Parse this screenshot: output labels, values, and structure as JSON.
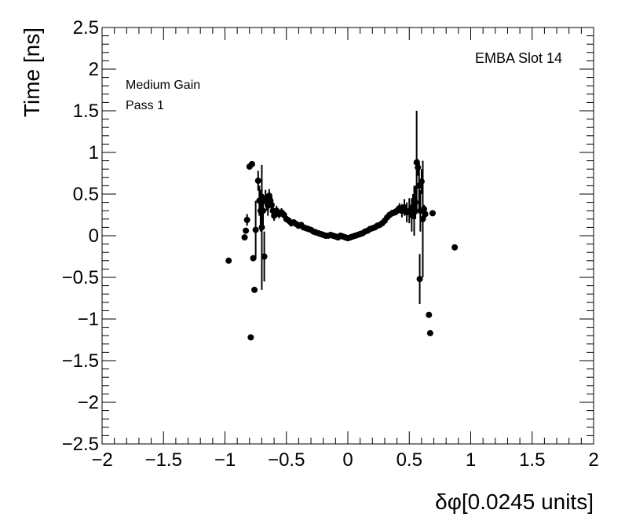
{
  "chart_data": {
    "type": "scatter",
    "xlabel": "δφ[0.0245 units]",
    "ylabel": "Time [ns]",
    "xlim": [
      -2,
      2
    ],
    "ylim": [
      -2.5,
      2.5
    ],
    "x_ticks": [
      "−2",
      "−1.5",
      "−1",
      "−0.5",
      "0",
      "0.5",
      "1",
      "1.5",
      "2"
    ],
    "y_ticks": [
      "−2.5",
      "−2",
      "−1.5",
      "−1",
      "−0.5",
      "0",
      "0.5",
      "1",
      "1.5",
      "2",
      "2.5"
    ],
    "annotations": {
      "top_right": "EMBA Slot 14",
      "line1": "Medium Gain",
      "line2": "Pass 1"
    },
    "grid": false,
    "marker_color": "#000000",
    "points": [
      {
        "x": -0.97,
        "y": -0.3,
        "err": 0
      },
      {
        "x": -0.84,
        "y": -0.02,
        "err": 0
      },
      {
        "x": -0.83,
        "y": 0.06,
        "err": 0
      },
      {
        "x": -0.82,
        "y": 0.19,
        "err": 0.07
      },
      {
        "x": -0.8,
        "y": 0.83,
        "err": 0
      },
      {
        "x": -0.79,
        "y": -1.22,
        "err": 0
      },
      {
        "x": -0.78,
        "y": 0.86,
        "err": 0
      },
      {
        "x": -0.77,
        "y": -0.27,
        "err": 0
      },
      {
        "x": -0.76,
        "y": -0.65,
        "err": 0
      },
      {
        "x": -0.75,
        "y": 0.07,
        "err": 0.35
      },
      {
        "x": -0.73,
        "y": 0.66,
        "err": 0.12
      },
      {
        "x": -0.72,
        "y": 0.42,
        "err": 0.18
      },
      {
        "x": -0.71,
        "y": 0.3,
        "err": 0.25
      },
      {
        "x": -0.7,
        "y": 0.1,
        "err": 0.75
      },
      {
        "x": -0.69,
        "y": 0.3,
        "err": 0.2
      },
      {
        "x": -0.68,
        "y": -0.25,
        "err": 0.3
      },
      {
        "x": -0.67,
        "y": 0.45,
        "err": 0.1
      },
      {
        "x": -0.66,
        "y": 0.4,
        "err": 0.1
      },
      {
        "x": -0.65,
        "y": 0.36,
        "err": 0.12
      },
      {
        "x": -0.64,
        "y": 0.48,
        "err": 0.08
      },
      {
        "x": -0.63,
        "y": 0.42,
        "err": 0.08
      },
      {
        "x": -0.62,
        "y": 0.37,
        "err": 0.1
      },
      {
        "x": -0.61,
        "y": 0.3,
        "err": 0.08
      },
      {
        "x": -0.6,
        "y": 0.24,
        "err": 0.06
      },
      {
        "x": -0.58,
        "y": 0.3,
        "err": 0.06
      },
      {
        "x": -0.56,
        "y": 0.26,
        "err": 0.05
      },
      {
        "x": -0.54,
        "y": 0.28,
        "err": 0.05
      },
      {
        "x": -0.52,
        "y": 0.25,
        "err": 0.05
      },
      {
        "x": -0.5,
        "y": 0.2,
        "err": 0.04
      },
      {
        "x": -0.48,
        "y": 0.18,
        "err": 0.04
      },
      {
        "x": -0.46,
        "y": 0.15,
        "err": 0.04
      },
      {
        "x": -0.44,
        "y": 0.16,
        "err": 0.03
      },
      {
        "x": -0.42,
        "y": 0.14,
        "err": 0.03
      },
      {
        "x": -0.4,
        "y": 0.12,
        "err": 0.03
      },
      {
        "x": -0.38,
        "y": 0.13,
        "err": 0.03
      },
      {
        "x": -0.36,
        "y": 0.1,
        "err": 0.03
      },
      {
        "x": -0.34,
        "y": 0.09,
        "err": 0.02
      },
      {
        "x": -0.32,
        "y": 0.08,
        "err": 0.02
      },
      {
        "x": -0.3,
        "y": 0.07,
        "err": 0.02
      },
      {
        "x": -0.28,
        "y": 0.05,
        "err": 0.02
      },
      {
        "x": -0.26,
        "y": 0.04,
        "err": 0.02
      },
      {
        "x": -0.24,
        "y": 0.03,
        "err": 0.02
      },
      {
        "x": -0.22,
        "y": 0.02,
        "err": 0.02
      },
      {
        "x": -0.2,
        "y": 0.01,
        "err": 0.02
      },
      {
        "x": -0.18,
        "y": 0.0,
        "err": 0.02
      },
      {
        "x": -0.16,
        "y": 0.0,
        "err": 0.02
      },
      {
        "x": -0.14,
        "y": 0.01,
        "err": 0.02
      },
      {
        "x": -0.12,
        "y": 0.0,
        "err": 0.02
      },
      {
        "x": -0.1,
        "y": -0.01,
        "err": 0.02
      },
      {
        "x": -0.08,
        "y": -0.02,
        "err": 0.02
      },
      {
        "x": -0.06,
        "y": 0.0,
        "err": 0.02
      },
      {
        "x": -0.04,
        "y": -0.01,
        "err": 0.02
      },
      {
        "x": -0.02,
        "y": -0.02,
        "err": 0.02
      },
      {
        "x": 0.0,
        "y": -0.03,
        "err": 0.02
      },
      {
        "x": 0.02,
        "y": -0.02,
        "err": 0.02
      },
      {
        "x": 0.04,
        "y": -0.01,
        "err": 0.02
      },
      {
        "x": 0.06,
        "y": 0.0,
        "err": 0.02
      },
      {
        "x": 0.08,
        "y": 0.01,
        "err": 0.02
      },
      {
        "x": 0.1,
        "y": 0.02,
        "err": 0.02
      },
      {
        "x": 0.12,
        "y": 0.03,
        "err": 0.02
      },
      {
        "x": 0.14,
        "y": 0.05,
        "err": 0.02
      },
      {
        "x": 0.16,
        "y": 0.06,
        "err": 0.02
      },
      {
        "x": 0.18,
        "y": 0.08,
        "err": 0.02
      },
      {
        "x": 0.2,
        "y": 0.09,
        "err": 0.02
      },
      {
        "x": 0.22,
        "y": 0.1,
        "err": 0.02
      },
      {
        "x": 0.24,
        "y": 0.12,
        "err": 0.02
      },
      {
        "x": 0.26,
        "y": 0.13,
        "err": 0.02
      },
      {
        "x": 0.28,
        "y": 0.15,
        "err": 0.03
      },
      {
        "x": 0.3,
        "y": 0.18,
        "err": 0.03
      },
      {
        "x": 0.32,
        "y": 0.22,
        "err": 0.03
      },
      {
        "x": 0.34,
        "y": 0.25,
        "err": 0.03
      },
      {
        "x": 0.36,
        "y": 0.27,
        "err": 0.04
      },
      {
        "x": 0.38,
        "y": 0.28,
        "err": 0.04
      },
      {
        "x": 0.4,
        "y": 0.3,
        "err": 0.05
      },
      {
        "x": 0.42,
        "y": 0.33,
        "err": 0.06
      },
      {
        "x": 0.44,
        "y": 0.3,
        "err": 0.08
      },
      {
        "x": 0.46,
        "y": 0.34,
        "err": 0.1
      },
      {
        "x": 0.48,
        "y": 0.28,
        "err": 0.12
      },
      {
        "x": 0.5,
        "y": 0.3,
        "err": 0.15
      },
      {
        "x": 0.52,
        "y": 0.25,
        "err": 0.2
      },
      {
        "x": 0.53,
        "y": 0.35,
        "err": 0.15
      },
      {
        "x": 0.54,
        "y": 0.3,
        "err": 0.3
      },
      {
        "x": 0.55,
        "y": 0.4,
        "err": 0.2
      },
      {
        "x": 0.56,
        "y": 0.88,
        "err": 0.62
      },
      {
        "x": 0.57,
        "y": 0.82,
        "err": 0.1
      },
      {
        "x": 0.58,
        "y": 0.6,
        "err": 0.3
      },
      {
        "x": 0.585,
        "y": -0.52,
        "err": 0.3
      },
      {
        "x": 0.59,
        "y": 0.3,
        "err": 0.25
      },
      {
        "x": 0.6,
        "y": 0.65,
        "err": 0.15
      },
      {
        "x": 0.61,
        "y": 0.2,
        "err": 0.7
      },
      {
        "x": 0.62,
        "y": 0.32,
        "err": 0.05
      },
      {
        "x": 0.63,
        "y": 0.26,
        "err": 0.05
      },
      {
        "x": 0.66,
        "y": -0.95,
        "err": 0
      },
      {
        "x": 0.67,
        "y": -1.17,
        "err": 0
      },
      {
        "x": 0.69,
        "y": 0.27,
        "err": 0
      },
      {
        "x": 0.87,
        "y": -0.14,
        "err": 0
      }
    ]
  }
}
